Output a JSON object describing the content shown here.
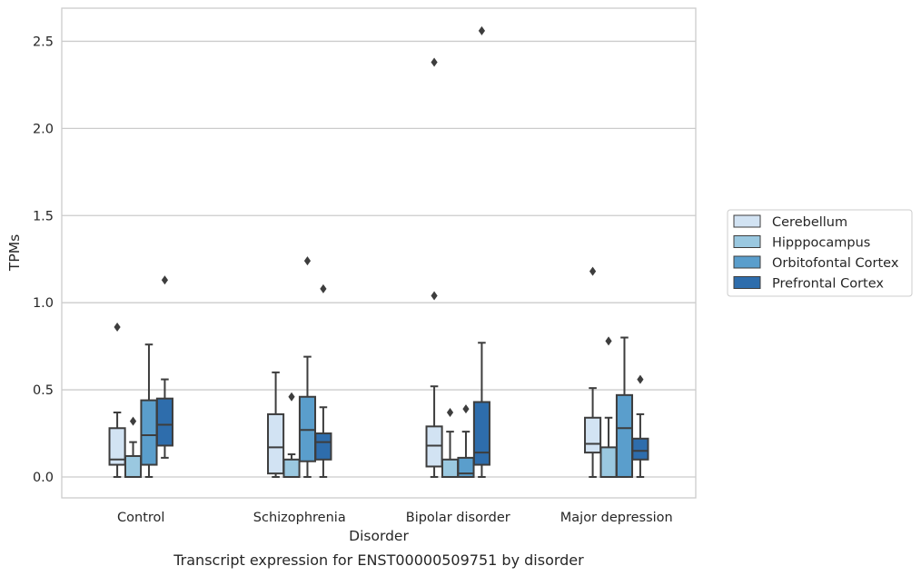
{
  "chart_data": {
    "type": "box",
    "title": "",
    "caption": "Transcript expression for ENST00000509751 by disorder",
    "xlabel": "Disorder",
    "ylabel": "TPMs",
    "ylim": [
      -0.12,
      2.69
    ],
    "yticks": [
      "0.0",
      "0.5",
      "1.0",
      "1.5",
      "2.0",
      "2.5"
    ],
    "grid": "horizontal",
    "legend_position": "right",
    "categories": [
      "Control",
      "Schizophrenia",
      "Bipolar disorder",
      "Major depression"
    ],
    "series": [
      {
        "name": "Cerebellum",
        "color": "#d2e3f3",
        "boxes": [
          {
            "whislo": 0.0,
            "q1": 0.07,
            "med": 0.1,
            "q3": 0.28,
            "whishi": 0.37,
            "fliers": [
              0.86
            ]
          },
          {
            "whislo": 0.0,
            "q1": 0.02,
            "med": 0.17,
            "q3": 0.36,
            "whishi": 0.6,
            "fliers": []
          },
          {
            "whislo": 0.0,
            "q1": 0.06,
            "med": 0.18,
            "q3": 0.29,
            "whishi": 0.52,
            "fliers": [
              1.04,
              2.38
            ]
          },
          {
            "whislo": 0.0,
            "q1": 0.14,
            "med": 0.19,
            "q3": 0.34,
            "whishi": 0.51,
            "fliers": [
              1.18
            ]
          }
        ]
      },
      {
        "name": "Hipppocampus",
        "color": "#9ac8e0",
        "boxes": [
          {
            "whislo": 0.0,
            "q1": 0.0,
            "med": 0.0,
            "q3": 0.12,
            "whishi": 0.2,
            "fliers": [
              0.32
            ]
          },
          {
            "whislo": 0.0,
            "q1": 0.0,
            "med": 0.0,
            "q3": 0.1,
            "whishi": 0.13,
            "fliers": [
              0.46
            ]
          },
          {
            "whislo": 0.0,
            "q1": 0.0,
            "med": 0.0,
            "q3": 0.1,
            "whishi": 0.26,
            "fliers": [
              0.37
            ]
          },
          {
            "whislo": 0.0,
            "q1": 0.0,
            "med": 0.0,
            "q3": 0.17,
            "whishi": 0.34,
            "fliers": [
              0.78
            ]
          }
        ]
      },
      {
        "name": "Orbitofontal Cortex",
        "color": "#5a9ecc",
        "boxes": [
          {
            "whislo": 0.0,
            "q1": 0.07,
            "med": 0.24,
            "q3": 0.44,
            "whishi": 0.76,
            "fliers": []
          },
          {
            "whislo": 0.0,
            "q1": 0.09,
            "med": 0.27,
            "q3": 0.46,
            "whishi": 0.69,
            "fliers": [
              1.24
            ]
          },
          {
            "whislo": 0.0,
            "q1": 0.0,
            "med": 0.02,
            "q3": 0.11,
            "whishi": 0.26,
            "fliers": [
              0.39
            ]
          },
          {
            "whislo": 0.0,
            "q1": 0.0,
            "med": 0.28,
            "q3": 0.47,
            "whishi": 0.8,
            "fliers": []
          }
        ]
      },
      {
        "name": "Prefrontal Cortex",
        "color": "#2e6dac",
        "boxes": [
          {
            "whislo": 0.11,
            "q1": 0.18,
            "med": 0.3,
            "q3": 0.45,
            "whishi": 0.56,
            "fliers": [
              1.13
            ]
          },
          {
            "whislo": 0.0,
            "q1": 0.1,
            "med": 0.2,
            "q3": 0.25,
            "whishi": 0.4,
            "fliers": [
              1.08
            ]
          },
          {
            "whislo": 0.0,
            "q1": 0.07,
            "med": 0.14,
            "q3": 0.43,
            "whishi": 0.77,
            "fliers": [
              2.56
            ]
          },
          {
            "whislo": 0.0,
            "q1": 0.1,
            "med": 0.15,
            "q3": 0.22,
            "whishi": 0.36,
            "fliers": [
              0.56
            ]
          }
        ]
      }
    ]
  }
}
